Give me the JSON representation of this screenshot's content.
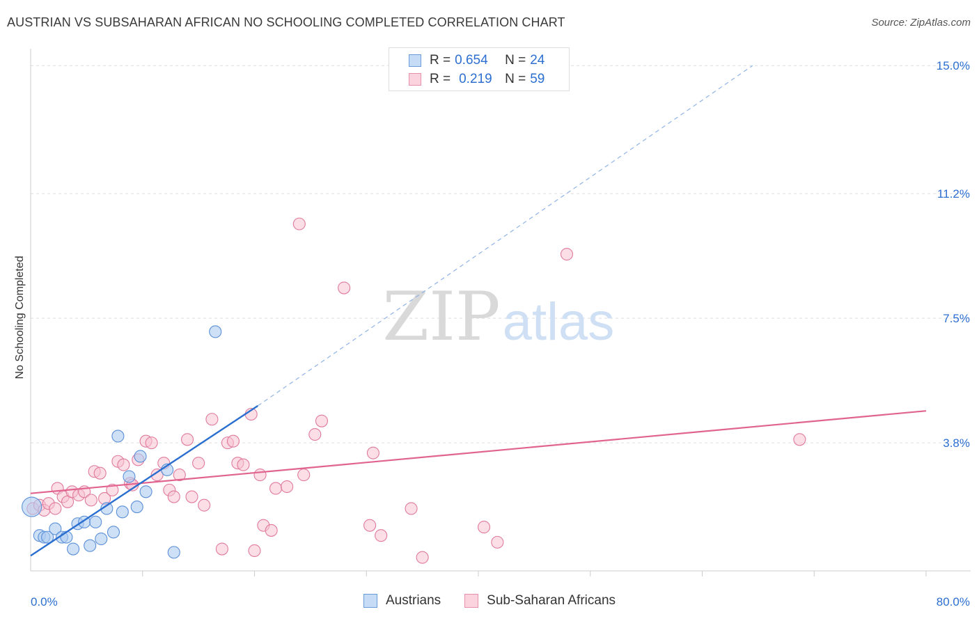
{
  "header": {
    "title": "AUSTRIAN VS SUBSAHARAN AFRICAN NO SCHOOLING COMPLETED CORRELATION CHART",
    "source": "Source: ZipAtlas.com"
  },
  "watermark": {
    "zip": "ZIP",
    "atlas": "atlas"
  },
  "legend": {
    "r_label": "R =",
    "n_label": "N =",
    "rows": [
      {
        "r": "0.654",
        "n": "24"
      },
      {
        "r": "0.219",
        "n": "59"
      }
    ]
  },
  "colors": {
    "blue_fill": "#aecbf0",
    "blue_stroke": "#5b8fd8",
    "blue_line": "#2a6fd0",
    "pink_fill": "#f7c2d2",
    "pink_stroke": "#e07a9c",
    "pink_line": "#e0648f",
    "tick_label": "#2c6fd1",
    "grid": "#dddddd"
  },
  "chart_data": {
    "type": "scatter",
    "title": "AUSTRIAN VS SUBSAHARAN AFRICAN NO SCHOOLING COMPLETED CORRELATION CHART",
    "xlabel": "",
    "ylabel": "No Schooling Completed",
    "xlim": [
      0,
      80
    ],
    "ylim": [
      0,
      15.5
    ],
    "x_tick_labels": [
      "0.0%",
      "80.0%"
    ],
    "y_ticks": [
      3.8,
      7.5,
      11.2,
      15.0
    ],
    "y_tick_labels": [
      "3.8%",
      "7.5%",
      "11.2%",
      "15.0%"
    ],
    "grid": true,
    "legend_position": "top-center",
    "series": [
      {
        "name": "Austrians",
        "color": "#5b8fd8",
        "R": 0.654,
        "N": 24,
        "points": [
          [
            0.1,
            1.9
          ],
          [
            0.8,
            1.05
          ],
          [
            1.2,
            1.0
          ],
          [
            1.5,
            1.0
          ],
          [
            2.2,
            1.25
          ],
          [
            2.8,
            1.0
          ],
          [
            3.2,
            1.0
          ],
          [
            3.8,
            0.65
          ],
          [
            4.2,
            1.4
          ],
          [
            4.8,
            1.45
          ],
          [
            5.3,
            0.75
          ],
          [
            5.8,
            1.45
          ],
          [
            6.3,
            0.95
          ],
          [
            6.8,
            1.85
          ],
          [
            7.4,
            1.15
          ],
          [
            7.8,
            4.0
          ],
          [
            8.2,
            1.75
          ],
          [
            8.8,
            2.8
          ],
          [
            9.5,
            1.9
          ],
          [
            9.8,
            3.4
          ],
          [
            10.3,
            2.35
          ],
          [
            12.2,
            3.0
          ],
          [
            12.8,
            0.55
          ],
          [
            16.5,
            7.1
          ]
        ],
        "trend": {
          "x0": 0,
          "y0": 0.45,
          "x1": 20.3,
          "y1": 4.9,
          "dashed_to": [
            64.5,
            15.0
          ]
        }
      },
      {
        "name": "Sub-Saharan Africans",
        "color": "#e07a9c",
        "R": 0.219,
        "N": 59,
        "points": [
          [
            0.2,
            1.85
          ],
          [
            0.8,
            1.95
          ],
          [
            1.2,
            1.8
          ],
          [
            1.6,
            2.0
          ],
          [
            2.2,
            1.85
          ],
          [
            2.4,
            2.45
          ],
          [
            2.9,
            2.2
          ],
          [
            3.3,
            2.05
          ],
          [
            3.7,
            2.35
          ],
          [
            4.3,
            2.25
          ],
          [
            4.8,
            2.35
          ],
          [
            5.4,
            2.1
          ],
          [
            5.7,
            2.95
          ],
          [
            6.2,
            2.9
          ],
          [
            6.6,
            2.15
          ],
          [
            7.3,
            2.4
          ],
          [
            7.8,
            3.25
          ],
          [
            8.3,
            3.15
          ],
          [
            8.9,
            2.6
          ],
          [
            9.1,
            2.55
          ],
          [
            9.6,
            3.3
          ],
          [
            10.3,
            3.85
          ],
          [
            10.8,
            3.8
          ],
          [
            11.3,
            2.85
          ],
          [
            11.9,
            3.2
          ],
          [
            12.4,
            2.4
          ],
          [
            12.8,
            2.2
          ],
          [
            13.3,
            2.85
          ],
          [
            14.0,
            3.9
          ],
          [
            14.4,
            2.2
          ],
          [
            15.0,
            3.2
          ],
          [
            15.5,
            1.95
          ],
          [
            16.2,
            4.5
          ],
          [
            17.1,
            0.65
          ],
          [
            17.6,
            3.8
          ],
          [
            18.1,
            3.85
          ],
          [
            18.5,
            3.2
          ],
          [
            19.0,
            3.15
          ],
          [
            19.7,
            4.65
          ],
          [
            20.0,
            0.6
          ],
          [
            20.5,
            2.85
          ],
          [
            20.8,
            1.35
          ],
          [
            21.5,
            1.2
          ],
          [
            21.9,
            2.45
          ],
          [
            22.9,
            2.5
          ],
          [
            24.0,
            10.3
          ],
          [
            24.4,
            2.85
          ],
          [
            25.4,
            4.05
          ],
          [
            26.0,
            4.45
          ],
          [
            28.0,
            8.4
          ],
          [
            30.3,
            1.35
          ],
          [
            30.6,
            3.5
          ],
          [
            31.3,
            1.05
          ],
          [
            34.0,
            1.85
          ],
          [
            35.0,
            0.4
          ],
          [
            40.5,
            1.3
          ],
          [
            41.7,
            0.85
          ],
          [
            47.9,
            9.4
          ],
          [
            68.7,
            3.9
          ]
        ],
        "trend": {
          "x0": 0,
          "y0": 2.3,
          "x1": 80,
          "y1": 4.75
        }
      }
    ]
  },
  "bottom_legend": {
    "items": [
      "Austrians",
      "Sub-Saharan Africans"
    ]
  }
}
